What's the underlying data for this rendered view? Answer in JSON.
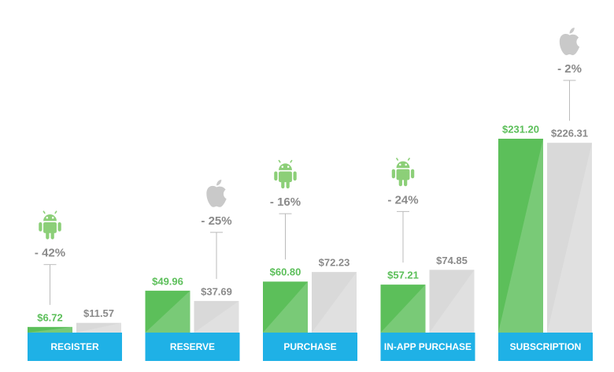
{
  "chart_data": {
    "type": "bar",
    "categories": [
      "REGISTER",
      "RESERVE",
      "PURCHASE",
      "IN-APP PURCHASE",
      "SUBSCRIPTION"
    ],
    "series": [
      {
        "color": "#5cbf5a",
        "values": [
          6.72,
          49.96,
          60.8,
          57.21,
          231.2
        ],
        "value_labels": [
          "$6.72",
          "$49.96",
          "$60.80",
          "$57.21",
          "$231.20"
        ]
      },
      {
        "color": "#d9d9d9",
        "values": [
          11.57,
          37.69,
          72.23,
          74.85,
          226.31
        ],
        "value_labels": [
          "$11.57",
          "$37.69",
          "$72.23",
          "$74.85",
          "$226.31"
        ]
      }
    ],
    "annotations": [
      "- 42%",
      "- 25%",
      "- 16%",
      "- 24%",
      "- 2%"
    ],
    "label_band_color": "#1fb1e6"
  }
}
